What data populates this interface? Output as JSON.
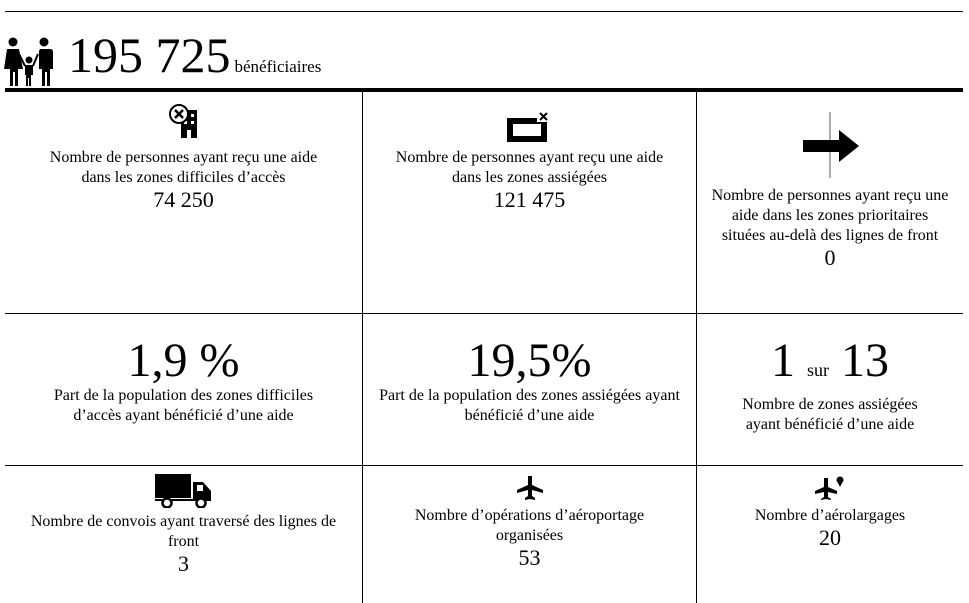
{
  "header": {
    "total": "195 725",
    "label": "bénéficiaires"
  },
  "rows": [
    [
      {
        "text": "Nombre de personnes ayant reçu une aide dans les zones difficiles d’accès",
        "value": "74 250"
      },
      {
        "text": "Nombre de personnes ayant reçu une aide dans les zones assiégées",
        "value": "121 475"
      },
      {
        "text": "Nombre de personnes ayant reçu une aide dans les zones prioritaires situées au-delà des lignes de front",
        "value": "0"
      }
    ],
    [
      {
        "value": "1,9 %",
        "text": "Part de la population des zones difficiles d’accès ayant bénéficié d’une aide"
      },
      {
        "value": "19,5%",
        "text": "Part de la population des zones assiégées ayant bénéficié d’une aide"
      },
      {
        "value": {
          "number": "1",
          "connector": "sur",
          "total": "13"
        },
        "text": "Nombre de zones assiégées ayant bénéficié d’une aide"
      }
    ],
    [
      {
        "text": "Nombre de convois ayant traversé des lignes de front",
        "value": "3"
      },
      {
        "text": "Nombre d’opérations d’aéroportage organisées",
        "value": "53"
      },
      {
        "text": "Nombre d’aérolargages",
        "value": "20"
      }
    ]
  ]
}
